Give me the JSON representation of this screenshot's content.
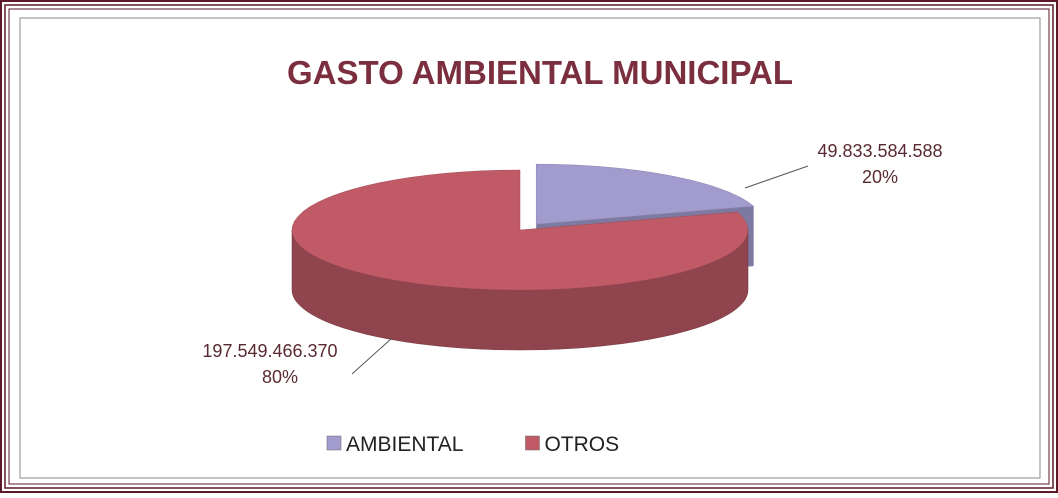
{
  "chart_data": {
    "type": "pie3d",
    "title": "GASTO AMBIENTAL MUNICIPAL",
    "categories": [
      "AMBIENTAL",
      "OTROS"
    ],
    "values": [
      49833584588,
      197549466370
    ],
    "value_labels": [
      "49.833.584.588",
      "197.549.466.370"
    ],
    "percentages": [
      20,
      80
    ],
    "percentage_labels": [
      "20%",
      "80%"
    ],
    "colors": [
      "#a29bcd",
      "#c05a66"
    ],
    "exploded": [
      true,
      false
    ],
    "legend": "bottom"
  }
}
